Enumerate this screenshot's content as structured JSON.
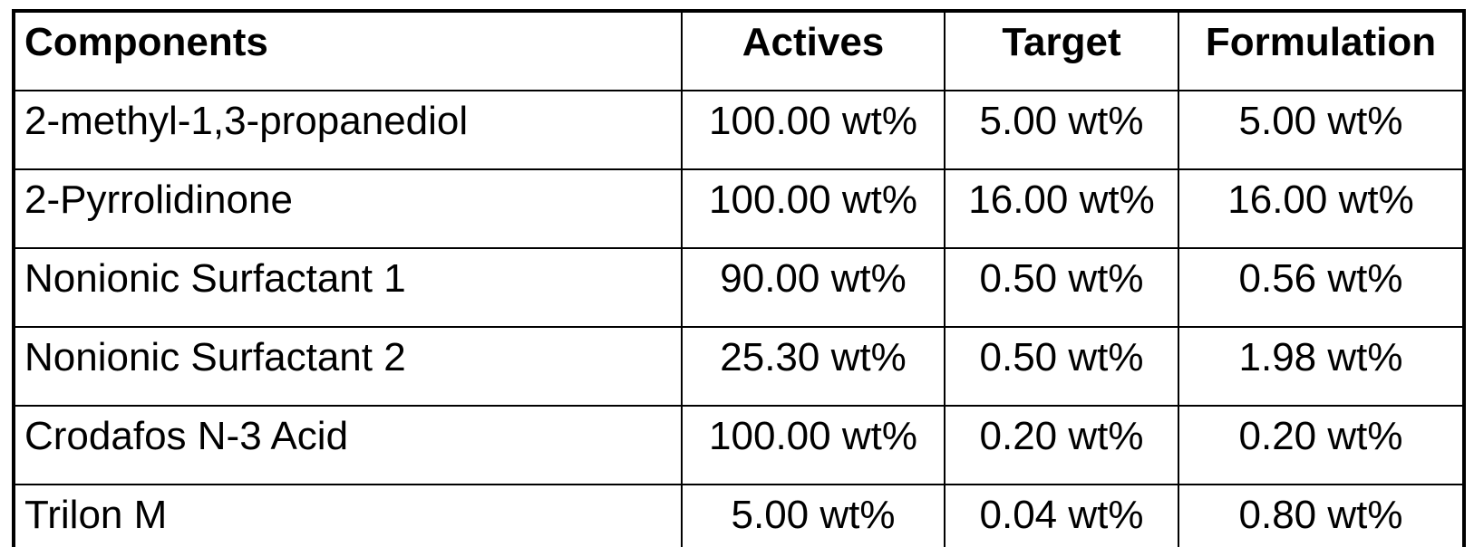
{
  "page": {
    "background_color": "#ffffff",
    "border_color": "#000000",
    "text_color": "#000000"
  },
  "table": {
    "columns": [
      {
        "id": "component",
        "label": "Components",
        "align": "left"
      },
      {
        "id": "actives",
        "label": "Actives",
        "align": "center"
      },
      {
        "id": "target",
        "label": "Target",
        "align": "center"
      },
      {
        "id": "formulation",
        "label": "Formulation",
        "align": "center"
      }
    ],
    "rows": [
      {
        "component": "2-methyl-1,3-propanediol",
        "actives": "100.00 wt%",
        "target": "5.00 wt%",
        "formulation": "5.00 wt%"
      },
      {
        "component": "2-Pyrrolidinone",
        "actives": "100.00 wt%",
        "target": "16.00 wt%",
        "formulation": "16.00 wt%"
      },
      {
        "component": "Nonionic Surfactant 1",
        "actives": "90.00 wt%",
        "target": "0.50 wt%",
        "formulation": "0.56 wt%"
      },
      {
        "component": "Nonionic Surfactant 2",
        "actives": "25.30 wt%",
        "target": "0.50 wt%",
        "formulation": "1.98 wt%"
      },
      {
        "component": "Crodafos N-3 Acid",
        "actives": "100.00 wt%",
        "target": "0.20 wt%",
        "formulation": "0.20 wt%"
      },
      {
        "component": "Trilon M",
        "actives": "5.00 wt%",
        "target": "0.04 wt%",
        "formulation": "0.80 wt%"
      }
    ]
  }
}
